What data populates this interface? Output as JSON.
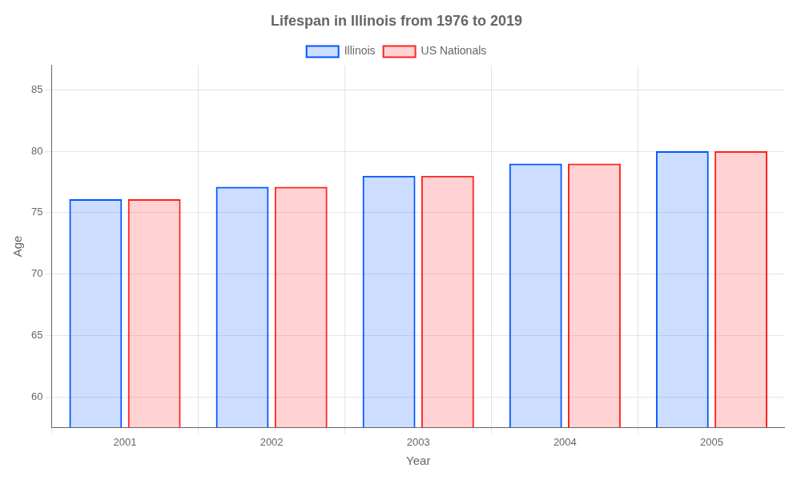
{
  "chart_data": {
    "type": "bar",
    "title": "Lifespan in Illinois from 1976 to 2019",
    "xlabel": "Year",
    "ylabel": "Age",
    "categories": [
      "2001",
      "2002",
      "2003",
      "2004",
      "2005"
    ],
    "series": [
      {
        "name": "Illinois",
        "color": "#0055ff",
        "values": [
          76.1,
          77.1,
          78.0,
          79.0,
          80.0
        ]
      },
      {
        "name": "US Nationals",
        "color": "#ff2222",
        "values": [
          76.1,
          77.1,
          78.0,
          79.0,
          80.0
        ]
      }
    ],
    "ylim": [
      57.5,
      87
    ],
    "yticks": [
      60,
      65,
      70,
      75,
      80,
      85
    ],
    "grid": true,
    "legend": "top"
  }
}
